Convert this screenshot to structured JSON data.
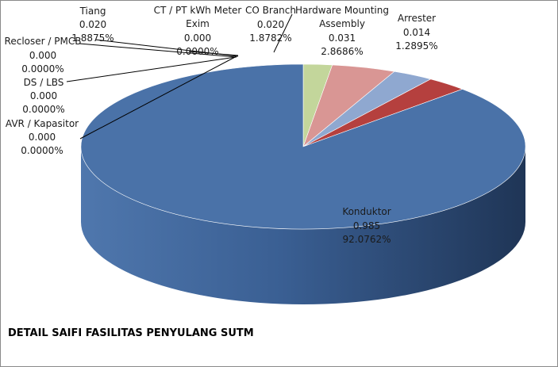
{
  "chart_data": {
    "type": "pie",
    "title": "DETAIL SAIFI FASILITAS PENYULANG SUTM",
    "style": "3d",
    "slices": [
      {
        "name": "Konduktor",
        "value_text": "0.985",
        "percent_text": "92.0762%",
        "value": 0.985,
        "percent": 92.0762,
        "color": "#4A72A8"
      },
      {
        "name": "Tiang",
        "value_text": "0.020",
        "percent_text": "1.8875%",
        "value": 0.02,
        "percent": 1.8875,
        "color": "#B5403E"
      },
      {
        "name": "Recloser / PMCB",
        "value_text": "0.000",
        "percent_text": "0.0000%",
        "value": 0.0,
        "percent": 0.0,
        "color": "#8FA8D0"
      },
      {
        "name": "DS / LBS",
        "value_text": "0.000",
        "percent_text": "0.0000%",
        "value": 0.0,
        "percent": 0.0,
        "color": "#8FA8D0"
      },
      {
        "name": "AVR / Kapasitor",
        "value_text": "0.000",
        "percent_text": "0.0000%",
        "value": 0.0,
        "percent": 0.0,
        "color": "#8FA8D0"
      },
      {
        "name": "CT / PT kWh Meter Exim",
        "value_text": "0.000",
        "percent_text": "0.0000%",
        "value": 0.0,
        "percent": 0.0,
        "color": "#8FA8D0"
      },
      {
        "name": "CO Branch",
        "value_text": "0.020",
        "percent_text": "1.8782%",
        "value": 0.02,
        "percent": 1.8782,
        "color": "#8FA8D0"
      },
      {
        "name": "Hardware Mounting Assembly",
        "value_text": "0.031",
        "percent_text": "2.8686%",
        "value": 0.031,
        "percent": 2.8686,
        "color": "#D99694"
      },
      {
        "name": "Arrester",
        "value_text": "0.014",
        "percent_text": "1.2895%",
        "value": 0.014,
        "percent": 1.2895,
        "color": "#C3D69B"
      }
    ]
  }
}
